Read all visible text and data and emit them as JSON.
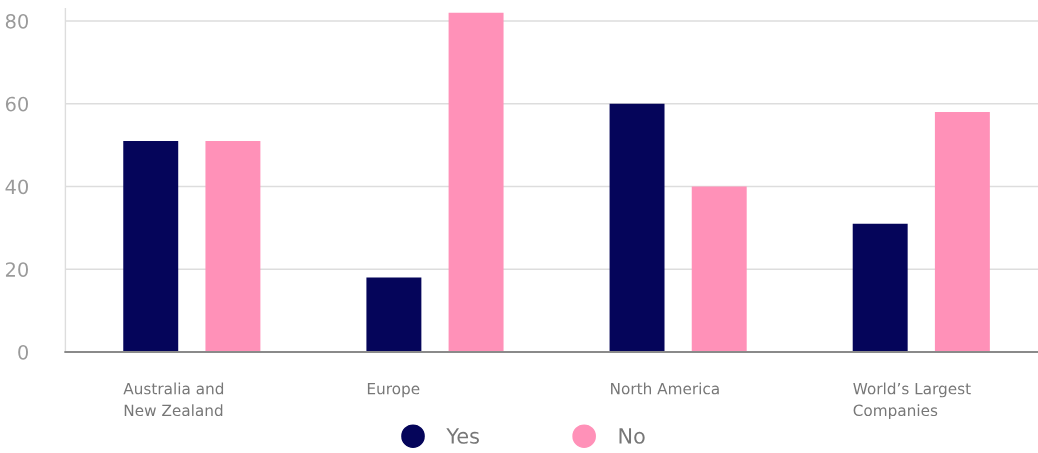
{
  "chart_data": {
    "type": "bar",
    "categories": [
      "Australia and New Zealand",
      "Europe",
      "North America",
      "World’s Largest Companies"
    ],
    "series": [
      {
        "name": "Yes",
        "color": "#05055a",
        "values": [
          51,
          18,
          60,
          31
        ]
      },
      {
        "name": "No",
        "color": "#ff91b8",
        "values": [
          51,
          82,
          40,
          58
        ]
      }
    ],
    "ylim": [
      0,
      83
    ],
    "yticks": [
      0,
      20,
      40,
      60,
      80
    ],
    "grid": "y",
    "legend": "bottom"
  }
}
